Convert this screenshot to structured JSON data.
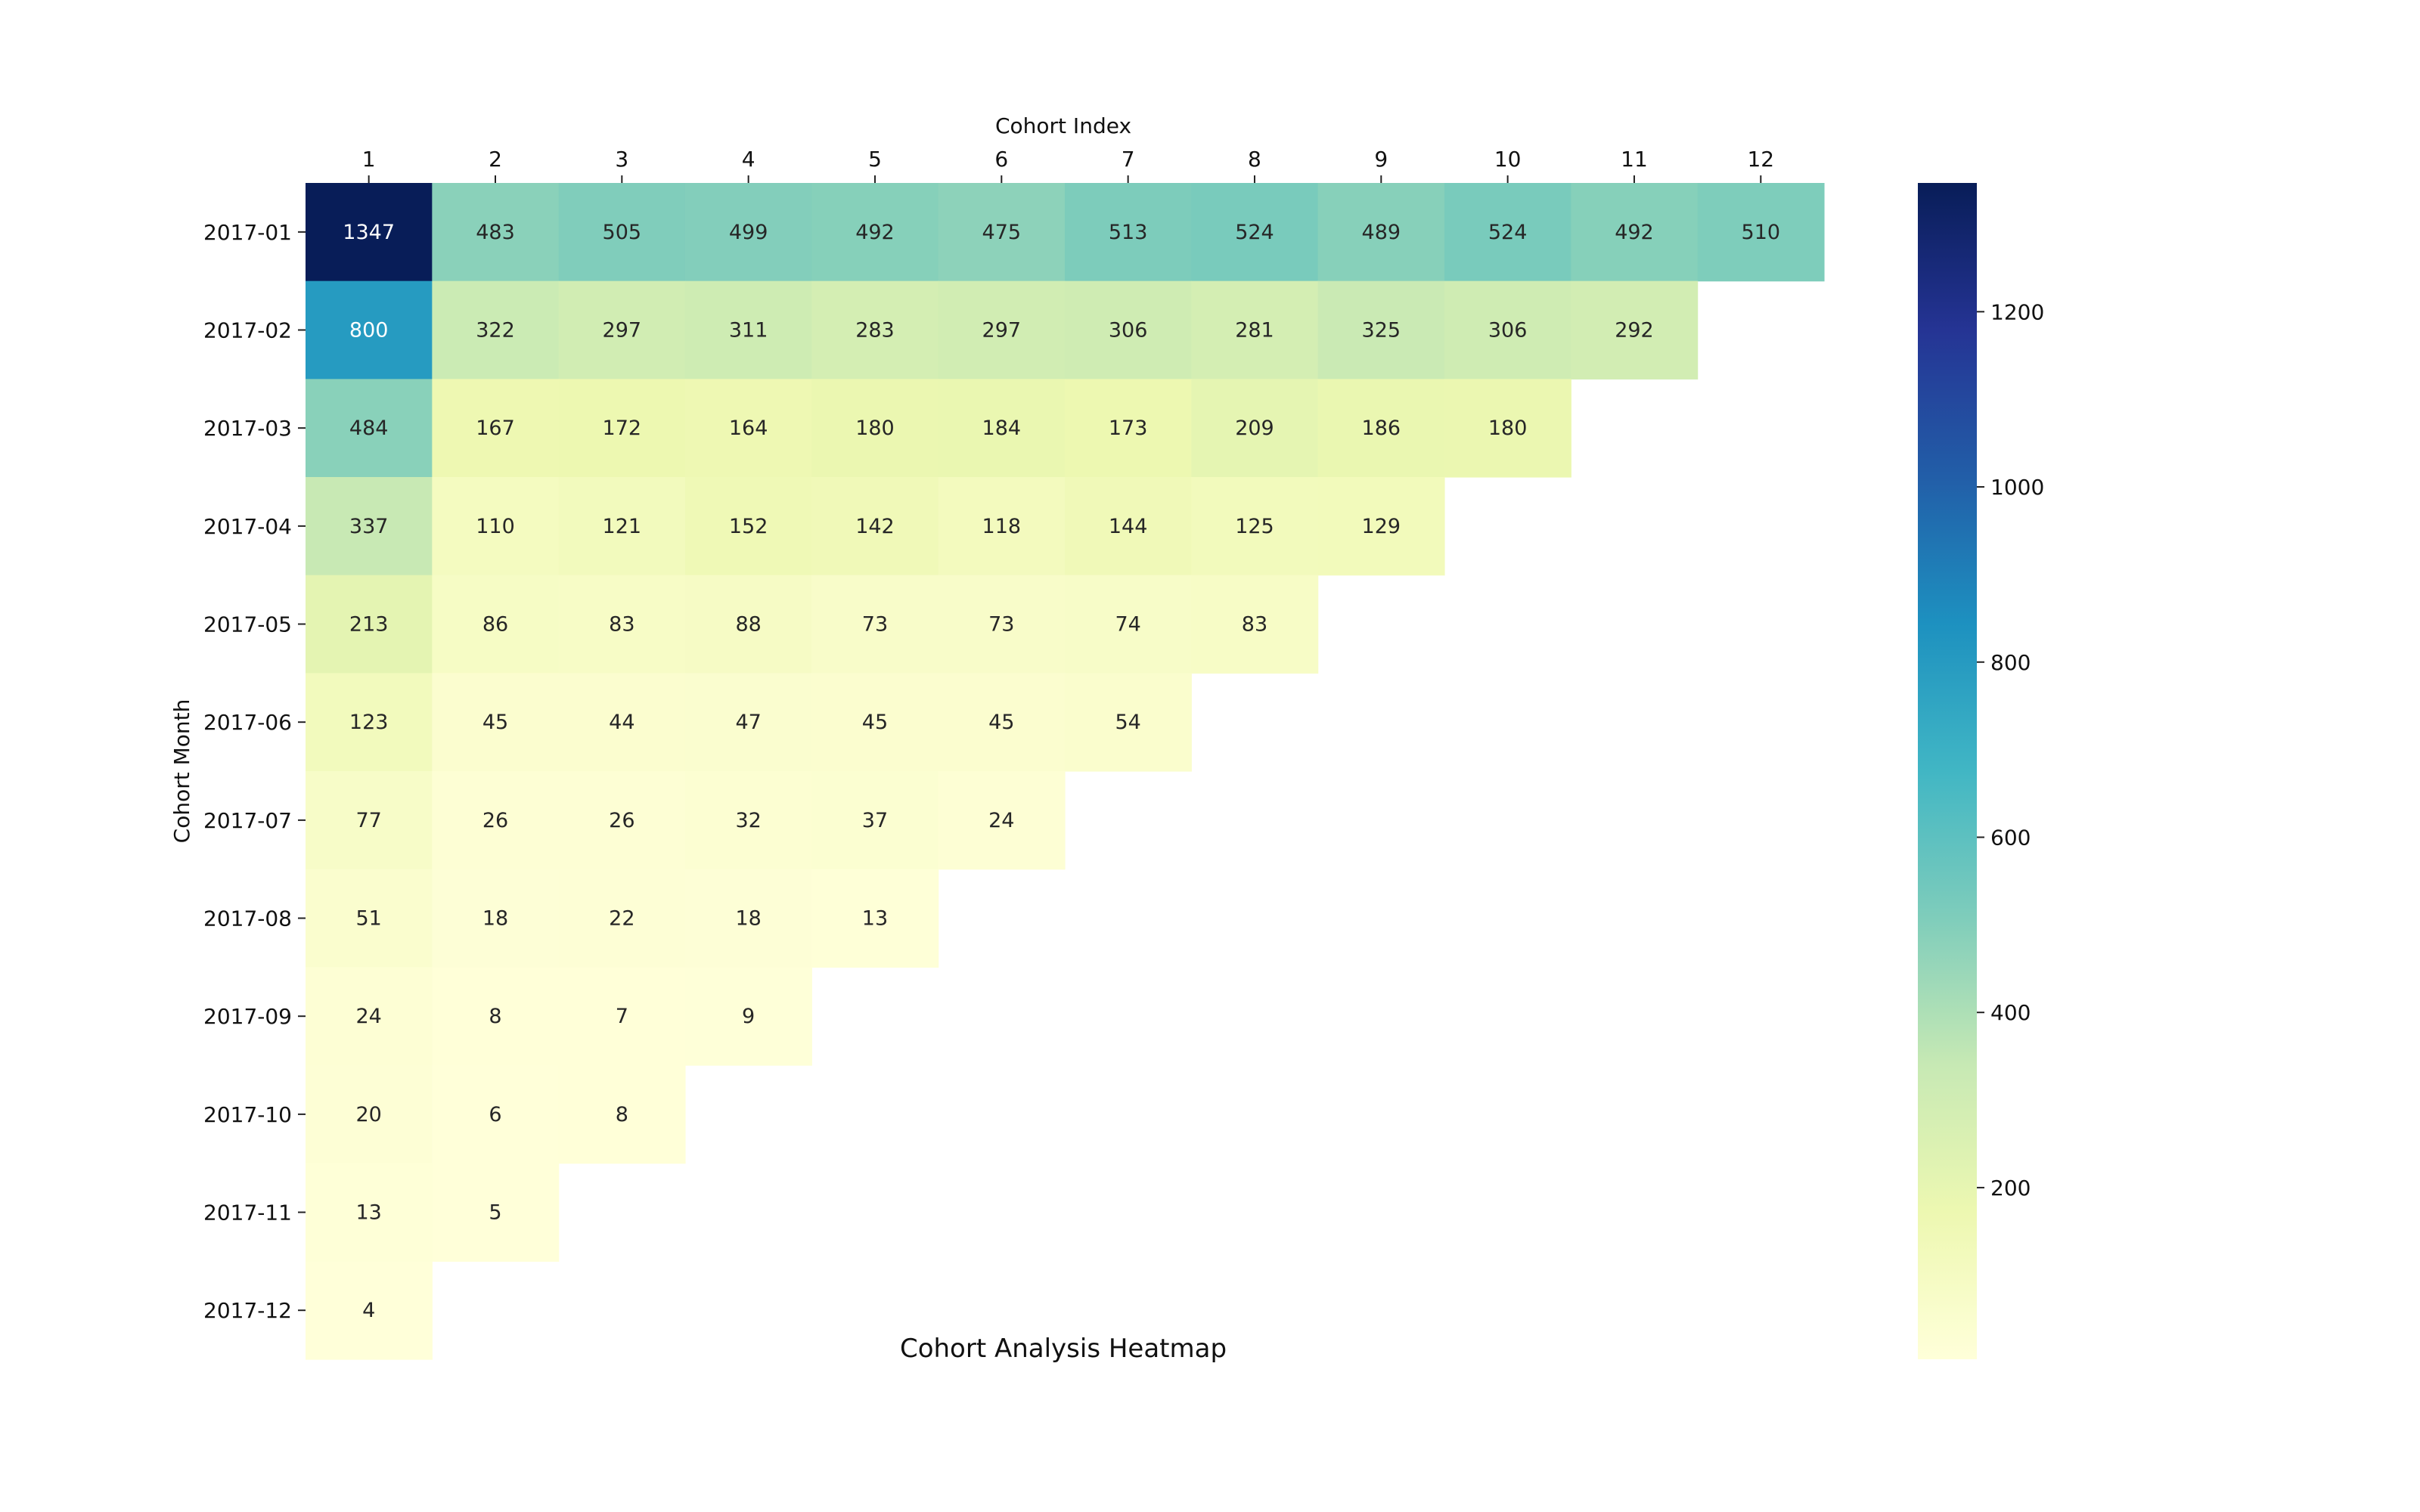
{
  "chart_data": {
    "type": "heatmap",
    "title": "Cohort Analysis Heatmap",
    "xlabel": "Cohort Index",
    "ylabel": "Cohort Month",
    "x": [
      "1",
      "2",
      "3",
      "4",
      "5",
      "6",
      "7",
      "8",
      "9",
      "10",
      "11",
      "12"
    ],
    "y": [
      "2017-01",
      "2017-02",
      "2017-03",
      "2017-04",
      "2017-05",
      "2017-06",
      "2017-07",
      "2017-08",
      "2017-09",
      "2017-10",
      "2017-11",
      "2017-12"
    ],
    "values": [
      [
        1347,
        483,
        505,
        499,
        492,
        475,
        513,
        524,
        489,
        524,
        492,
        510
      ],
      [
        800,
        322,
        297,
        311,
        283,
        297,
        306,
        281,
        325,
        306,
        292,
        null
      ],
      [
        484,
        167,
        172,
        164,
        180,
        184,
        173,
        209,
        186,
        180,
        null,
        null
      ],
      [
        337,
        110,
        121,
        152,
        142,
        118,
        144,
        125,
        129,
        null,
        null,
        null
      ],
      [
        213,
        86,
        83,
        88,
        73,
        73,
        74,
        83,
        null,
        null,
        null,
        null
      ],
      [
        123,
        45,
        44,
        47,
        45,
        45,
        54,
        null,
        null,
        null,
        null,
        null
      ],
      [
        77,
        26,
        26,
        32,
        37,
        24,
        null,
        null,
        null,
        null,
        null,
        null
      ],
      [
        51,
        18,
        22,
        18,
        13,
        null,
        null,
        null,
        null,
        null,
        null,
        null
      ],
      [
        24,
        8,
        7,
        9,
        null,
        null,
        null,
        null,
        null,
        null,
        null,
        null
      ],
      [
        20,
        6,
        8,
        null,
        null,
        null,
        null,
        null,
        null,
        null,
        null,
        null
      ],
      [
        13,
        5,
        null,
        null,
        null,
        null,
        null,
        null,
        null,
        null,
        null,
        null
      ],
      [
        4,
        null,
        null,
        null,
        null,
        null,
        null,
        null,
        null,
        null,
        null,
        null
      ]
    ],
    "colormap": "YlGnBu",
    "value_range": [
      4,
      1347
    ],
    "colorbar_ticks": [
      200,
      400,
      600,
      800,
      1000,
      1200
    ],
    "x_axis_position": "top",
    "grid": false
  }
}
